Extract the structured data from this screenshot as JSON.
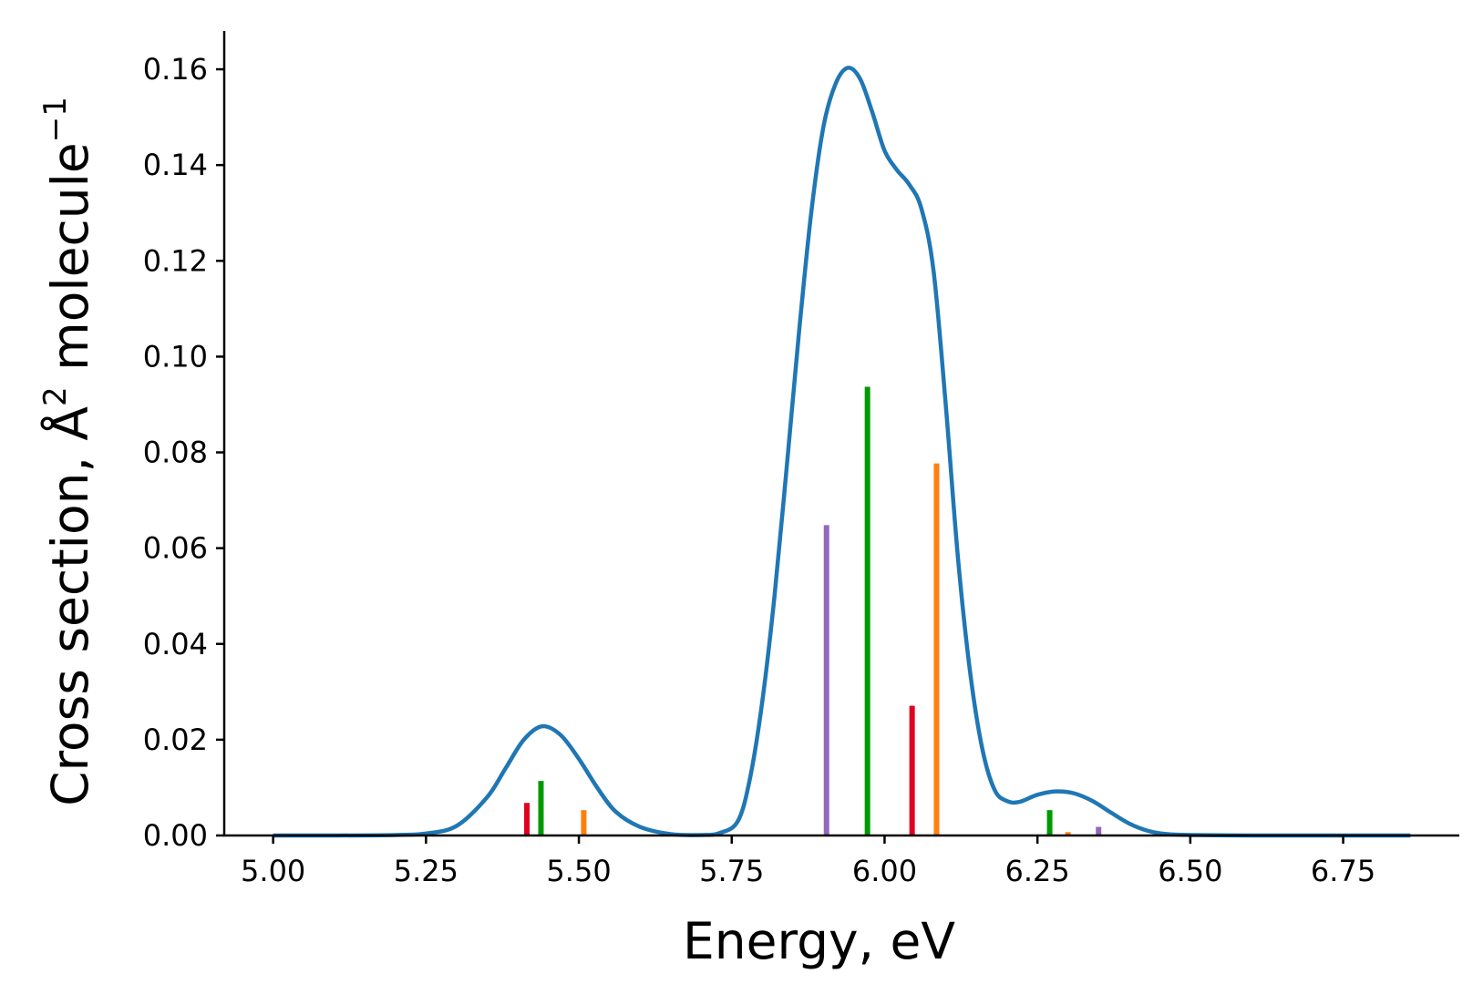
{
  "chart_data": {
    "type": "line",
    "xlabel": "Energy, eV",
    "ylabel": {
      "main": "Cross section, Å",
      "sup1": "2",
      "mid": " molecule",
      "sup2": "−1"
    },
    "xlim": [
      4.92,
      6.94
    ],
    "ylim": [
      0,
      0.168
    ],
    "xticks": [
      {
        "value": 5.0,
        "label": "5.00"
      },
      {
        "value": 5.25,
        "label": "5.25"
      },
      {
        "value": 5.5,
        "label": "5.50"
      },
      {
        "value": 5.75,
        "label": "5.75"
      },
      {
        "value": 6.0,
        "label": "6.00"
      },
      {
        "value": 6.25,
        "label": "6.25"
      },
      {
        "value": 6.5,
        "label": "6.50"
      },
      {
        "value": 6.75,
        "label": "6.75"
      }
    ],
    "yticks": [
      {
        "value": 0.0,
        "label": "0.00"
      },
      {
        "value": 0.02,
        "label": "0.02"
      },
      {
        "value": 0.04,
        "label": "0.04"
      },
      {
        "value": 0.06,
        "label": "0.06"
      },
      {
        "value": 0.08,
        "label": "0.08"
      },
      {
        "value": 0.1,
        "label": "0.10"
      },
      {
        "value": 0.12,
        "label": "0.12"
      },
      {
        "value": 0.14,
        "label": "0.14"
      },
      {
        "value": 0.16,
        "label": "0.16"
      }
    ],
    "spectrum": {
      "color": "#1f77b4",
      "points": [
        [
          5.0,
          0.0
        ],
        [
          5.1,
          0.0
        ],
        [
          5.2,
          0.0001
        ],
        [
          5.25,
          0.0004
        ],
        [
          5.3,
          0.002
        ],
        [
          5.35,
          0.008
        ],
        [
          5.38,
          0.014
        ],
        [
          5.41,
          0.02
        ],
        [
          5.44,
          0.0228
        ],
        [
          5.47,
          0.021
        ],
        [
          5.5,
          0.016
        ],
        [
          5.53,
          0.01
        ],
        [
          5.56,
          0.005
        ],
        [
          5.6,
          0.0018
        ],
        [
          5.65,
          0.0003
        ],
        [
          5.7,
          0.0001
        ],
        [
          5.73,
          0.0005
        ],
        [
          5.76,
          0.003
        ],
        [
          5.78,
          0.012
        ],
        [
          5.8,
          0.028
        ],
        [
          5.82,
          0.05
        ],
        [
          5.84,
          0.077
        ],
        [
          5.86,
          0.105
        ],
        [
          5.88,
          0.13
        ],
        [
          5.9,
          0.148
        ],
        [
          5.92,
          0.157
        ],
        [
          5.94,
          0.1603
        ],
        [
          5.96,
          0.158
        ],
        [
          5.98,
          0.151
        ],
        [
          6.0,
          0.143
        ],
        [
          6.02,
          0.139
        ],
        [
          6.04,
          0.136
        ],
        [
          6.06,
          0.131
        ],
        [
          6.08,
          0.118
        ],
        [
          6.1,
          0.09
        ],
        [
          6.12,
          0.058
        ],
        [
          6.14,
          0.034
        ],
        [
          6.16,
          0.018
        ],
        [
          6.18,
          0.0095
        ],
        [
          6.2,
          0.0072
        ],
        [
          6.22,
          0.007
        ],
        [
          6.25,
          0.0085
        ],
        [
          6.28,
          0.0092
        ],
        [
          6.31,
          0.0088
        ],
        [
          6.34,
          0.0072
        ],
        [
          6.37,
          0.0048
        ],
        [
          6.4,
          0.0025
        ],
        [
          6.43,
          0.001
        ],
        [
          6.46,
          0.0003
        ],
        [
          6.5,
          0.0001
        ],
        [
          6.6,
          0.0
        ],
        [
          6.7,
          0.0
        ],
        [
          6.8,
          0.0
        ],
        [
          6.86,
          0.0
        ]
      ]
    },
    "sticks": [
      {
        "x": 5.415,
        "y": 0.0068,
        "color": "#e00020"
      },
      {
        "x": 5.438,
        "y": 0.0114,
        "color": "#009a00"
      },
      {
        "x": 5.508,
        "y": 0.0053,
        "color": "#ff7f0e"
      },
      {
        "x": 5.905,
        "y": 0.0648,
        "color": "#9467bd"
      },
      {
        "x": 5.972,
        "y": 0.0937,
        "color": "#009a00"
      },
      {
        "x": 6.045,
        "y": 0.0271,
        "color": "#e00020"
      },
      {
        "x": 6.085,
        "y": 0.0777,
        "color": "#ff7f0e"
      },
      {
        "x": 6.27,
        "y": 0.0053,
        "color": "#009a00"
      },
      {
        "x": 6.3,
        "y": 0.0007,
        "color": "#ff7f0e"
      },
      {
        "x": 6.35,
        "y": 0.0018,
        "color": "#9467bd"
      }
    ]
  }
}
